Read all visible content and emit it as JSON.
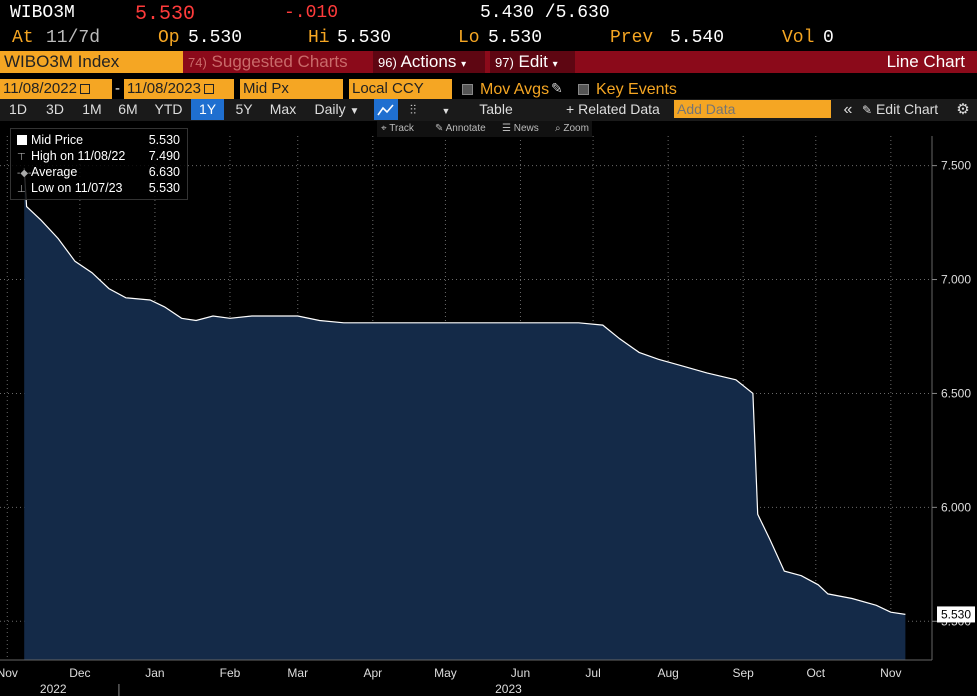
{
  "header": {
    "ticker": "WIBO3M",
    "last_price": "5.530",
    "change": "-.010",
    "bid_ask": "5.430 /5.630",
    "at_label": "At",
    "at_value": "11/7d",
    "open_label": "Op",
    "open_value": "5.530",
    "high_label": "Hi",
    "high_value": "5.530",
    "low_label": "Lo",
    "low_value": "5.530",
    "prev_label": "Prev",
    "prev_value": "5.540",
    "vol_label": "Vol",
    "vol_value": "0"
  },
  "menubar": {
    "security": "WIBO3M Index",
    "suggested_num": "74)",
    "suggested_label": "Suggested Charts",
    "actions_num": "96)",
    "actions_label": "Actions",
    "edit_num": "97)",
    "edit_label": "Edit",
    "title": "Line Chart"
  },
  "controls": {
    "start_date": "11/08/2022",
    "end_date": "11/08/2023",
    "field": "Mid Px",
    "currency": "Local CCY",
    "mov_avgs": "Mov Avgs",
    "key_events": "Key Events"
  },
  "ranges": {
    "items": [
      "1D",
      "3D",
      "1M",
      "6M",
      "YTD",
      "1Y",
      "5Y",
      "Max"
    ],
    "active": "1Y",
    "frequency": "Daily",
    "table": "Table",
    "related_data": "Related Data",
    "add_data_placeholder": "Add Data",
    "edit_chart": "Edit Chart"
  },
  "toolbar": {
    "track": "Track",
    "annotate": "Annotate",
    "news": "News",
    "zoom": "Zoom"
  },
  "legend": {
    "mid_price_label": "Mid Price",
    "mid_price_value": "5.530",
    "high_label": "High on 11/08/22",
    "high_value": "7.490",
    "average_label": "Average",
    "average_value": "6.630",
    "low_label": "Low on 11/07/23",
    "low_value": "5.530"
  },
  "colors": {
    "background": "#000000",
    "area_fill": "#142a48",
    "line": "#ffffff",
    "accent_orange": "#f5a623",
    "menu_red": "#8b0a1a",
    "last_red": "#ff3b3b"
  },
  "chart_data": {
    "type": "area",
    "series": [
      {
        "name": "Mid Price",
        "points": [
          [
            "2022-11-08",
            7.49
          ],
          [
            "2022-11-09",
            7.32
          ],
          [
            "2022-11-15",
            7.26
          ],
          [
            "2022-11-22",
            7.18
          ],
          [
            "2022-11-29",
            7.08
          ],
          [
            "2022-12-06",
            7.03
          ],
          [
            "2022-12-13",
            6.96
          ],
          [
            "2022-12-20",
            6.92
          ],
          [
            "2022-12-30",
            6.91
          ],
          [
            "2023-01-05",
            6.88
          ],
          [
            "2023-01-12",
            6.83
          ],
          [
            "2023-01-18",
            6.82
          ],
          [
            "2023-01-25",
            6.84
          ],
          [
            "2023-02-01",
            6.83
          ],
          [
            "2023-02-10",
            6.84
          ],
          [
            "2023-02-20",
            6.84
          ],
          [
            "2023-03-01",
            6.84
          ],
          [
            "2023-03-10",
            6.82
          ],
          [
            "2023-03-20",
            6.81
          ],
          [
            "2023-04-01",
            6.81
          ],
          [
            "2023-04-20",
            6.81
          ],
          [
            "2023-05-10",
            6.81
          ],
          [
            "2023-06-01",
            6.81
          ],
          [
            "2023-06-25",
            6.81
          ],
          [
            "2023-07-05",
            6.8
          ],
          [
            "2023-07-12",
            6.74
          ],
          [
            "2023-07-20",
            6.68
          ],
          [
            "2023-07-28",
            6.65
          ],
          [
            "2023-08-07",
            6.62
          ],
          [
            "2023-08-17",
            6.59
          ],
          [
            "2023-08-29",
            6.56
          ],
          [
            "2023-09-05",
            6.5
          ],
          [
            "2023-09-07",
            5.97
          ],
          [
            "2023-09-12",
            5.86
          ],
          [
            "2023-09-18",
            5.72
          ],
          [
            "2023-09-25",
            5.7
          ],
          [
            "2023-10-02",
            5.66
          ],
          [
            "2023-10-06",
            5.62
          ],
          [
            "2023-10-16",
            5.6
          ],
          [
            "2023-10-26",
            5.57
          ],
          [
            "2023-11-01",
            5.54
          ],
          [
            "2023-11-07",
            5.53
          ]
        ]
      }
    ],
    "x_ticks": [
      "Nov",
      "Dec",
      "Jan",
      "Feb",
      "Mar",
      "Apr",
      "May",
      "Jun",
      "Jul",
      "Aug",
      "Sep",
      "Oct",
      "Nov"
    ],
    "x_tick_dates": [
      "2022-11-01",
      "2022-12-01",
      "2023-01-01",
      "2023-02-01",
      "2023-03-01",
      "2023-04-01",
      "2023-05-01",
      "2023-06-01",
      "2023-07-01",
      "2023-08-01",
      "2023-09-01",
      "2023-10-01",
      "2023-11-01"
    ],
    "year_labels": [
      "2022",
      "2023"
    ],
    "y_ticks": [
      "7.500",
      "7.000",
      "6.500",
      "6.000",
      "5.500"
    ],
    "y_tick_values": [
      7.5,
      7.0,
      6.5,
      6.0,
      5.5
    ],
    "ylim": [
      5.33,
      7.63
    ],
    "xlim": [
      "2022-10-29",
      "2023-11-18"
    ],
    "last_value_label": "5.530",
    "grid": true
  }
}
